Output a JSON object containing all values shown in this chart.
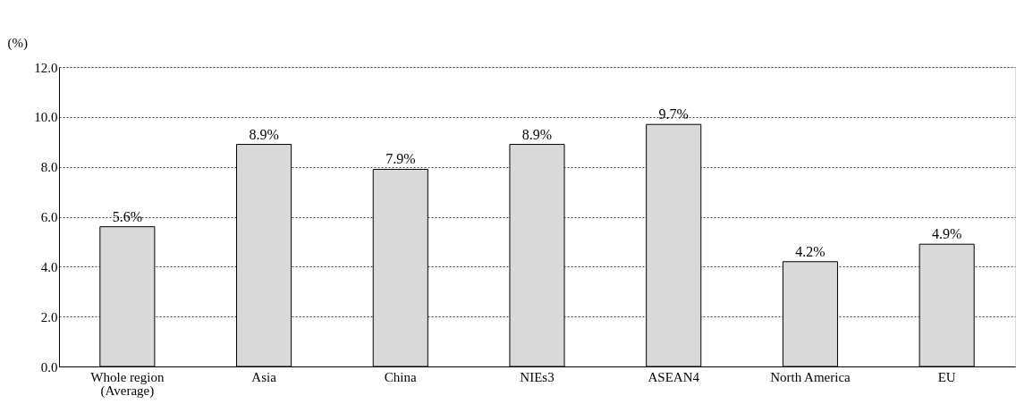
{
  "chart_data": {
    "type": "bar",
    "ylabel": "(%)",
    "categories": [
      "Whole region\n(Average)",
      "Asia",
      "China",
      "NIEs3",
      "ASEAN4",
      "North America",
      "EU"
    ],
    "values": [
      5.6,
      8.9,
      7.9,
      8.9,
      9.7,
      4.2,
      4.9
    ],
    "value_labels": [
      "5.6%",
      "8.9%",
      "7.9%",
      "8.9%",
      "9.7%",
      "4.2%",
      "4.9%"
    ],
    "color": "#d9d9d9",
    "ylim": [
      0,
      12
    ],
    "yticks": [
      {
        "value": 0,
        "label": "0.0"
      },
      {
        "value": 2,
        "label": "2.0"
      },
      {
        "value": 4,
        "label": "4.0"
      },
      {
        "value": 6,
        "label": "6.0"
      },
      {
        "value": 8,
        "label": "8.0"
      },
      {
        "value": 10,
        "label": "10.0"
      },
      {
        "value": 12,
        "label": "12.0"
      }
    ],
    "grid": "y"
  }
}
